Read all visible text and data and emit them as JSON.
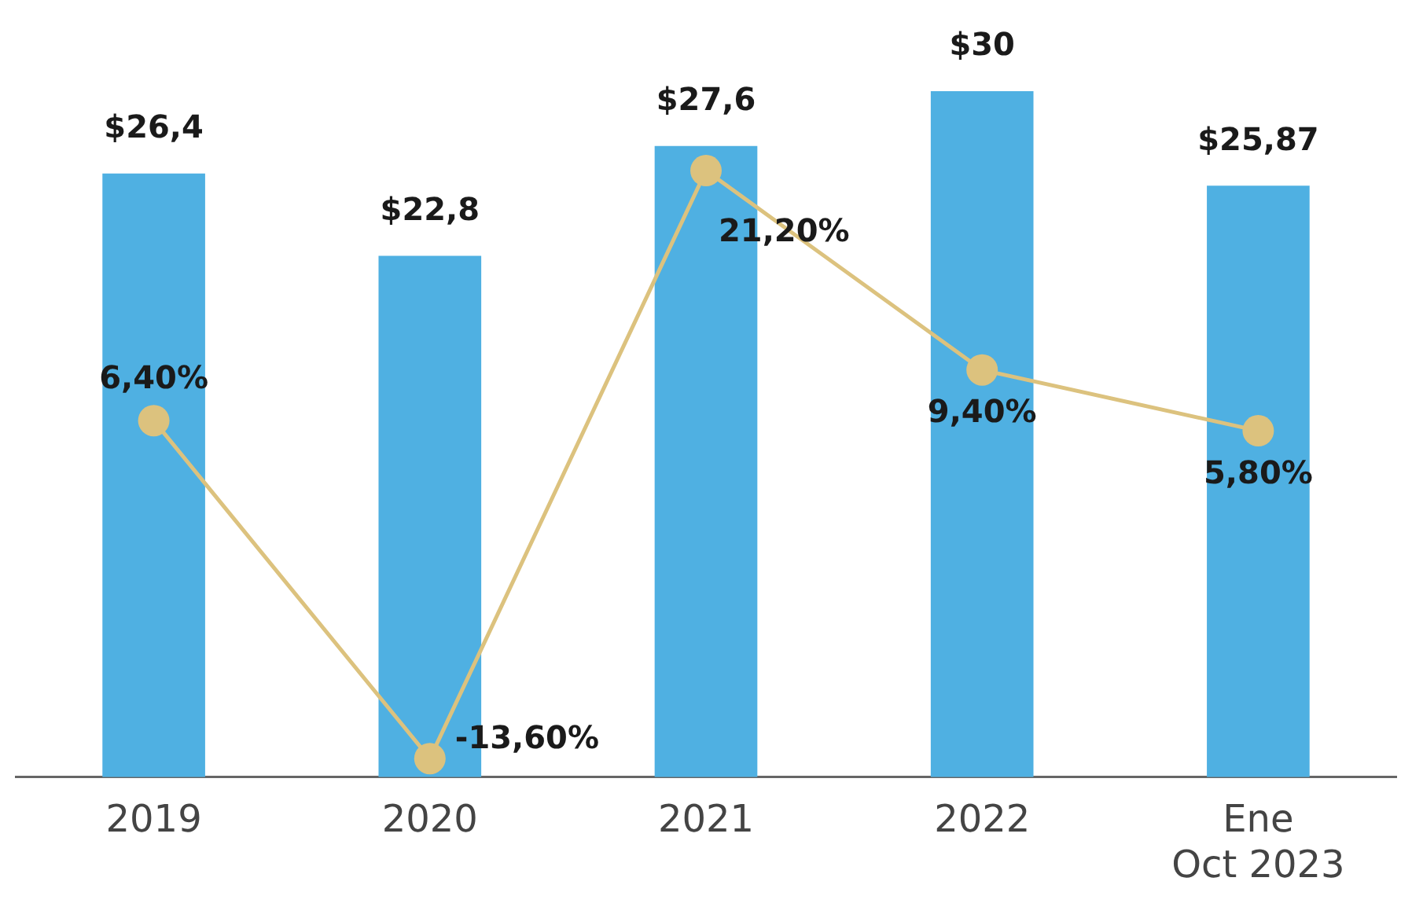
{
  "chart_data": {
    "type": "bar",
    "categories": [
      "2019",
      "2020",
      "2021",
      "2022",
      "Ene\nOct 2023"
    ],
    "series": [
      {
        "color": "#4fb0e2",
        "values": [
          26.4,
          22.8,
          27.6,
          30,
          25.87
        ],
        "value_labels": [
          "$26,4",
          "$22,8",
          "$27,6",
          "$30",
          "$25,87"
        ]
      },
      {
        "type": "line",
        "axis": "y2",
        "color": "#dcc27e",
        "values": [
          6.4,
          -13.6,
          21.2,
          9.4,
          5.8
        ],
        "value_labels": [
          "6,40%",
          "-13,60%",
          "21,20%",
          "9,40%",
          "5,80%"
        ]
      }
    ],
    "ylim": [
      0,
      30
    ],
    "y2lim": [
      -14.7,
      25.9
    ],
    "marker": "circle",
    "grid": false,
    "legend": false,
    "tick_labels": "x"
  }
}
